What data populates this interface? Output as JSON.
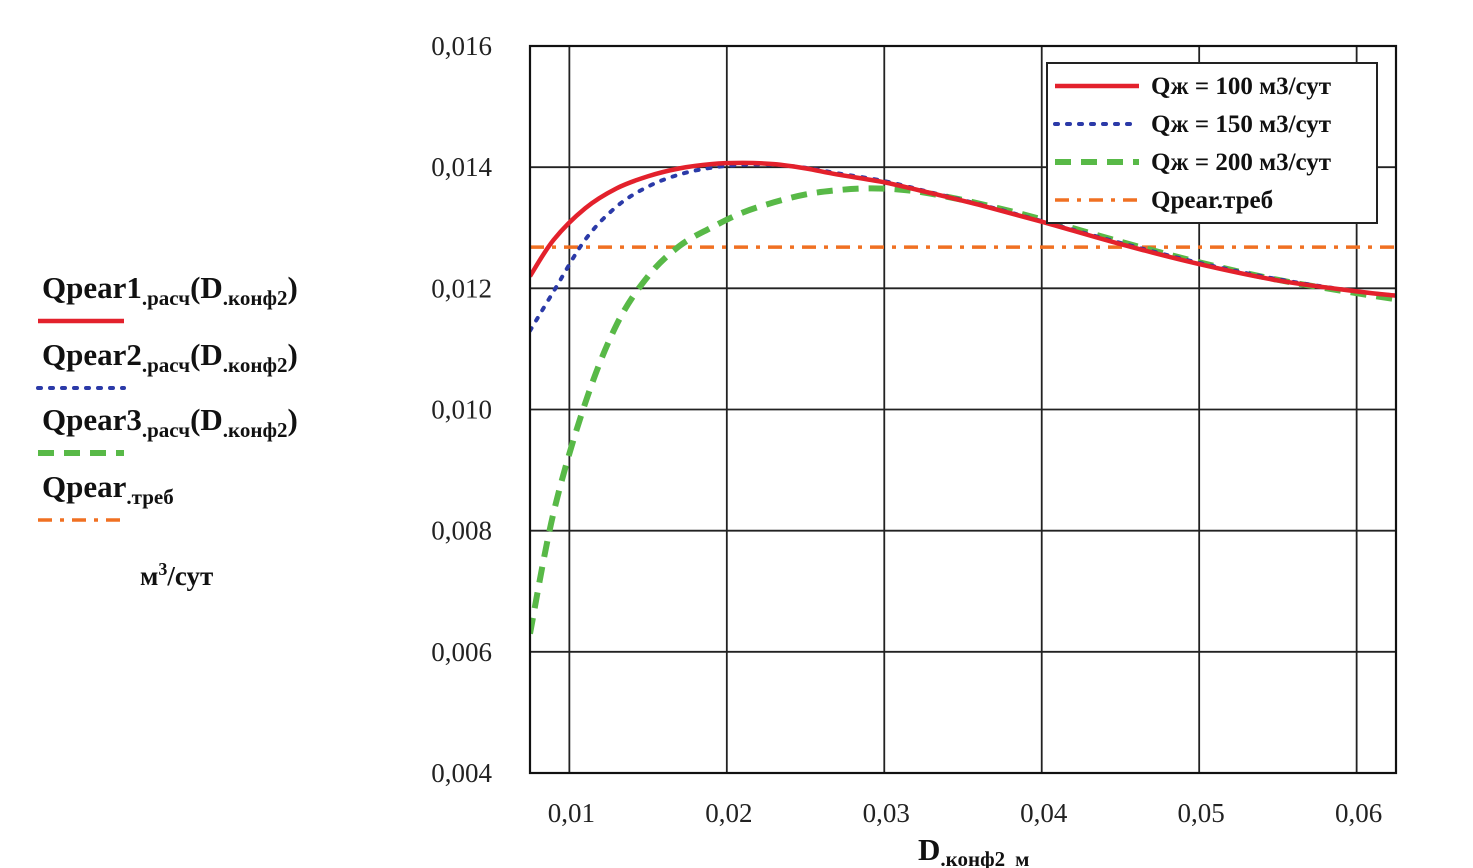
{
  "chart_data": {
    "type": "line",
    "xlabel": {
      "main": "D",
      "sub": ".конф2",
      "unit": "м"
    },
    "ylabel_unit": {
      "base": "м",
      "sup": "3",
      "rest": "/сут"
    },
    "xlim": [
      0.0075,
      0.0625
    ],
    "ylim": [
      0.004,
      0.016
    ],
    "x_ticks": [
      0.01,
      0.02,
      0.03,
      0.04,
      0.05,
      0.06
    ],
    "x_tick_labels": [
      "0,01",
      "0,02",
      "0,03",
      "0,04",
      "0,05",
      "0,06"
    ],
    "y_ticks": [
      0.004,
      0.006,
      0.008,
      0.01,
      0.012,
      0.014,
      0.016
    ],
    "y_tick_labels": [
      "0,004",
      "0,006",
      "0,008",
      "0,010",
      "0,012",
      "0,014",
      "0,016"
    ],
    "grid": true,
    "legend_position": "top-right",
    "series": [
      {
        "name": "Qж = 100 м3/сут",
        "axis_label": {
          "main": "Qpear1",
          "sub": ".расч",
          "arg": "D",
          "arg_sub": ".конф2"
        },
        "color": "#e3212c",
        "style": "solid",
        "x": [
          0.0075,
          0.009,
          0.011,
          0.013,
          0.015,
          0.017,
          0.019,
          0.021,
          0.023,
          0.025,
          0.027,
          0.03,
          0.033,
          0.036,
          0.04,
          0.045,
          0.05,
          0.055,
          0.06,
          0.0625
        ],
        "y": [
          0.0122,
          0.0128,
          0.01332,
          0.01365,
          0.01385,
          0.01398,
          0.01405,
          0.01407,
          0.01405,
          0.01398,
          0.01388,
          0.01375,
          0.01357,
          0.01338,
          0.0131,
          0.01273,
          0.0124,
          0.01213,
          0.01195,
          0.01188
        ]
      },
      {
        "name": "Qж = 150 м3/сут",
        "axis_label": {
          "main": "Qpear2",
          "sub": ".расч",
          "arg": "D",
          "arg_sub": ".конф2"
        },
        "color": "#2b3aa8",
        "style": "dotted",
        "x": [
          0.0075,
          0.009,
          0.011,
          0.013,
          0.015,
          0.017,
          0.019,
          0.021,
          0.023,
          0.025,
          0.027,
          0.03,
          0.033,
          0.036,
          0.04,
          0.045,
          0.05,
          0.055,
          0.06,
          0.0625
        ],
        "y": [
          0.0113,
          0.01195,
          0.0128,
          0.01335,
          0.01368,
          0.01388,
          0.01399,
          0.01404,
          0.01404,
          0.01399,
          0.0139,
          0.01377,
          0.01358,
          0.01339,
          0.01311,
          0.01275,
          0.01242,
          0.01215,
          0.01195,
          0.01188
        ]
      },
      {
        "name": "Qж = 200 м3/сут",
        "axis_label": {
          "main": "Qpear3",
          "sub": ".расч",
          "arg": "D",
          "arg_sub": ".конф2"
        },
        "color": "#58b947",
        "style": "dashed",
        "x": [
          0.0075,
          0.009,
          0.011,
          0.013,
          0.015,
          0.017,
          0.019,
          0.021,
          0.023,
          0.025,
          0.027,
          0.029,
          0.031,
          0.033,
          0.036,
          0.04,
          0.045,
          0.05,
          0.055,
          0.06,
          0.0625
        ],
        "y": [
          0.0063,
          0.0083,
          0.0101,
          0.0114,
          0.0122,
          0.0127,
          0.013,
          0.01325,
          0.01342,
          0.01355,
          0.01362,
          0.01365,
          0.01363,
          0.01356,
          0.0134,
          0.01314,
          0.01277,
          0.01243,
          0.01214,
          0.01192,
          0.01182
        ]
      },
      {
        "name": "Qpear.треб",
        "axis_label": {
          "main": "Qpear",
          "sub": ".треб",
          "arg": "",
          "arg_sub": ""
        },
        "color": "#f07022",
        "style": "dashdot",
        "x": [
          0.0075,
          0.0625
        ],
        "y": [
          0.01268,
          0.01268
        ]
      }
    ]
  }
}
